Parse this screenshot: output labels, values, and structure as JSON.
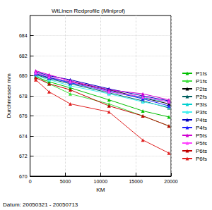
{
  "chart_data": {
    "type": "line",
    "title": "WtLinen Redprofile (Miniprof)",
    "x_label": "KM",
    "y_label": "Durchmesser mm",
    "annotations": [
      "Datum: 20050321 - 20050713"
    ],
    "x": [
      800,
      2700,
      5700,
      11200,
      16000,
      19700
    ],
    "xlim": [
      0,
      20000
    ],
    "xticks": [
      0,
      5000,
      10000,
      15000,
      20000
    ],
    "ylim": [
      670,
      686
    ],
    "yticks": [
      670,
      672,
      674,
      676,
      678,
      680,
      682,
      684
    ],
    "grid": true,
    "legend": "right",
    "marker": "triangle",
    "line_style": "solid",
    "series": [
      {
        "name": "P1ts",
        "color": "#00c000",
        "values": [
          679.9,
          679.4,
          678.8,
          677.6,
          676.5,
          675.9
        ]
      },
      {
        "name": "P1fs",
        "color": "#40e040",
        "values": [
          680.0,
          679.2,
          678.2,
          677.2,
          676.0,
          675.0
        ]
      },
      {
        "name": "P2ts",
        "color": "#000000",
        "values": [
          680.2,
          679.8,
          679.4,
          678.6,
          677.8,
          677.2
        ]
      },
      {
        "name": "P2fs",
        "color": "#006060",
        "values": [
          680.1,
          679.7,
          679.2,
          678.3,
          677.5,
          676.8
        ]
      },
      {
        "name": "P3ts",
        "color": "#00d0d0",
        "values": [
          680.3,
          679.9,
          679.3,
          678.4,
          677.8,
          677.4
        ]
      },
      {
        "name": "P3fs",
        "color": "#40f0f0",
        "values": [
          680.0,
          679.6,
          679.0,
          678.2,
          677.4,
          676.9
        ]
      },
      {
        "name": "P4ts",
        "color": "#0000c0",
        "values": [
          680.4,
          680.0,
          679.6,
          678.7,
          678.0,
          677.5
        ]
      },
      {
        "name": "P4fs",
        "color": "#2020ff",
        "values": [
          680.2,
          679.8,
          679.3,
          678.5,
          677.7,
          677.0
        ]
      },
      {
        "name": "P5ts",
        "color": "#d000d0",
        "values": [
          680.5,
          680.1,
          679.5,
          678.6,
          678.2,
          677.6
        ]
      },
      {
        "name": "P5fs",
        "color": "#ff40ff",
        "values": [
          680.3,
          679.9,
          679.4,
          678.4,
          677.9,
          677.4
        ]
      },
      {
        "name": "P6ts",
        "color": "#c00000",
        "values": [
          679.8,
          679.2,
          678.6,
          677.0,
          676.0,
          675.0
        ]
      },
      {
        "name": "P6fs",
        "color": "#e02020",
        "values": [
          679.6,
          678.4,
          677.2,
          676.4,
          673.6,
          672.3
        ]
      }
    ]
  }
}
